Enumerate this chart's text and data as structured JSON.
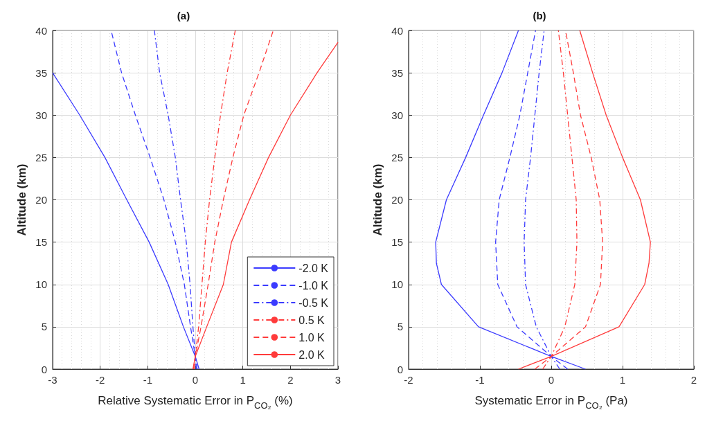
{
  "chart_data": [
    {
      "type": "line",
      "title": "(a)",
      "xlabel": "Relative Systematic Error in P$_{CO₂}$ (%)",
      "ylabel": "Altitude (km)",
      "xlim": [
        -3,
        3
      ],
      "xticks": [
        -3,
        -2,
        -1,
        0,
        1,
        2,
        3
      ],
      "ylim": [
        0,
        40
      ],
      "yticks": [
        0,
        5,
        10,
        15,
        20,
        25,
        30,
        35,
        40
      ],
      "grid": true,
      "legend": "bottom right",
      "marker": "none",
      "series": [
        {
          "name": "-2.0 K",
          "color": "#3b3bff",
          "line_style": "solid",
          "x": [
            0.08,
            0,
            -0.25,
            -0.57,
            -0.97,
            -1.44,
            -1.9,
            -2.43,
            -3.0
          ],
          "values": [
            0,
            1.5,
            5,
            10,
            15,
            20,
            25,
            30,
            35
          ]
        },
        {
          "name": "-1.0 K",
          "color": "#3b3bff",
          "line_style": "dashed",
          "x": [
            0.04,
            0,
            -0.1,
            -0.23,
            -0.42,
            -0.66,
            -0.95,
            -1.26,
            -1.55,
            -1.77
          ],
          "values": [
            0,
            1.5,
            5,
            10,
            15,
            20,
            25,
            30,
            35,
            40
          ]
        },
        {
          "name": "-0.5 K",
          "color": "#3b3bff",
          "line_style": "dashdot",
          "x": [
            0.02,
            0,
            -0.05,
            -0.11,
            -0.19,
            -0.31,
            -0.42,
            -0.57,
            -0.75,
            -0.86
          ],
          "values": [
            0,
            1.5,
            5,
            10,
            15,
            20,
            25,
            30,
            35,
            40
          ]
        },
        {
          "name": "0.5 K",
          "color": "#ff3b3b",
          "line_style": "dashdot",
          "x": [
            -0.02,
            0,
            0.07,
            0.14,
            0.21,
            0.3,
            0.41,
            0.53,
            0.67,
            0.84
          ],
          "values": [
            0,
            1.5,
            5,
            10,
            15,
            20,
            25,
            30,
            35,
            40
          ]
        },
        {
          "name": "1.0 K",
          "color": "#ff3b3b",
          "line_style": "dashed",
          "x": [
            -0.04,
            0,
            0.12,
            0.27,
            0.41,
            0.59,
            0.79,
            1.02,
            1.34,
            1.64
          ],
          "values": [
            0,
            1.5,
            5,
            10,
            15,
            20,
            25,
            30,
            35,
            40
          ]
        },
        {
          "name": "2.0 K",
          "color": "#ff3b3b",
          "line_style": "solid",
          "x": [
            -0.05,
            0,
            0.24,
            0.59,
            0.76,
            1.14,
            1.54,
            2.0,
            2.56,
            3.0
          ],
          "values": [
            0,
            1.5,
            5,
            10,
            15,
            20,
            25,
            30,
            35,
            38.6
          ]
        }
      ]
    },
    {
      "type": "line",
      "title": "(b)",
      "xlabel": "Systematic Error in P$_{CO₂}$ (Pa)",
      "ylabel": "Altitude (km)",
      "xlim": [
        -2,
        2
      ],
      "xticks": [
        -2,
        -1,
        0,
        1,
        2
      ],
      "ylim": [
        0,
        40
      ],
      "yticks": [
        0,
        5,
        10,
        15,
        20,
        25,
        30,
        35,
        40
      ],
      "grid": true,
      "marker": "none",
      "series": [
        {
          "color": "#3b3bff",
          "line_style": "solid",
          "x": [
            0.48,
            0,
            -1.02,
            -1.54,
            -1.61,
            -1.62,
            -1.47,
            -1.2,
            -0.95,
            -0.69,
            -0.46
          ],
          "values": [
            0,
            1.5,
            5,
            10,
            12.5,
            15,
            20,
            25,
            30,
            35,
            40
          ]
        },
        {
          "color": "#3b3bff",
          "line_style": "dashed",
          "x": [
            0.23,
            0,
            -0.48,
            -0.75,
            -0.78,
            -0.73,
            -0.58,
            -0.44,
            -0.33,
            -0.22
          ],
          "values": [
            0,
            1.5,
            5,
            10,
            15,
            20,
            25,
            30,
            35,
            40
          ]
        },
        {
          "color": "#3b3bff",
          "line_style": "dashdot",
          "x": [
            0.12,
            0,
            -0.21,
            -0.36,
            -0.38,
            -0.36,
            -0.29,
            -0.23,
            -0.17,
            -0.1
          ],
          "values": [
            0,
            1.5,
            5,
            10,
            15,
            20,
            25,
            30,
            35,
            40
          ]
        },
        {
          "color": "#ff3b3b",
          "line_style": "dashdot",
          "x": [
            -0.12,
            0,
            0.19,
            0.33,
            0.36,
            0.35,
            0.29,
            0.23,
            0.17,
            0.1
          ],
          "values": [
            0,
            1.5,
            5,
            10,
            15,
            20,
            25,
            30,
            35,
            40
          ]
        },
        {
          "color": "#ff3b3b",
          "line_style": "dashed",
          "x": [
            -0.23,
            0,
            0.48,
            0.69,
            0.72,
            0.68,
            0.56,
            0.41,
            0.31,
            0.2
          ],
          "values": [
            0,
            1.5,
            5,
            10,
            15,
            20,
            25,
            30,
            35,
            40
          ]
        },
        {
          "color": "#ff3b3b",
          "line_style": "solid",
          "x": [
            -0.46,
            0,
            0.95,
            1.31,
            1.37,
            1.39,
            1.25,
            1.0,
            0.77,
            0.58,
            0.4
          ],
          "values": [
            0,
            1.5,
            5,
            10,
            12.5,
            15,
            20,
            25,
            30,
            35,
            40
          ]
        }
      ]
    }
  ]
}
